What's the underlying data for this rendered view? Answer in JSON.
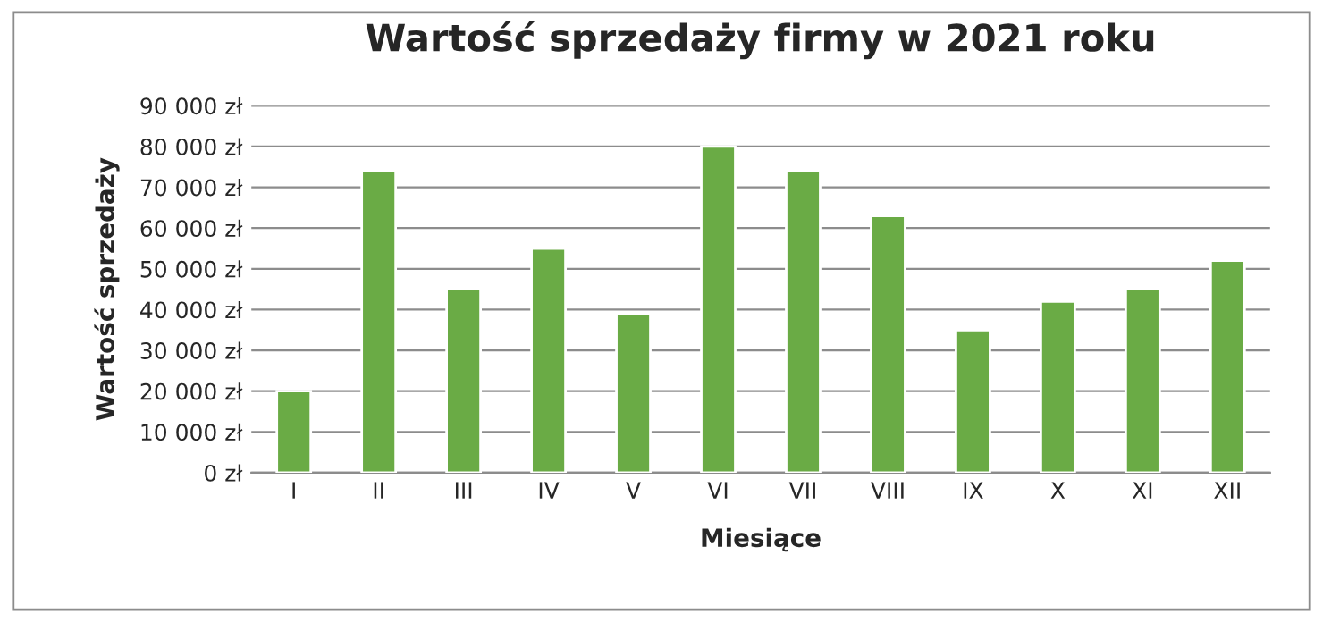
{
  "chart_data": {
    "type": "bar",
    "title": "Wartość sprzedaży firmy w 2021 roku",
    "xlabel": "Miesiące",
    "ylabel": "Wartość sprzedaży",
    "categories": [
      "I",
      "II",
      "III",
      "IV",
      "V",
      "VI",
      "VII",
      "VIII",
      "IX",
      "X",
      "XI",
      "XII"
    ],
    "values": [
      20000,
      74000,
      45000,
      55000,
      39000,
      80000,
      74000,
      63000,
      35000,
      42000,
      45000,
      52000
    ],
    "color": "#6aab45",
    "ylim": [
      0,
      90000
    ],
    "yticks": [
      {
        "value": 0,
        "label": "0 zł"
      },
      {
        "value": 10000,
        "label": "10 000 zł"
      },
      {
        "value": 20000,
        "label": "20 000 zł"
      },
      {
        "value": 30000,
        "label": "30 000 zł"
      },
      {
        "value": 40000,
        "label": "40 000 zł"
      },
      {
        "value": 50000,
        "label": "50 000 zł"
      },
      {
        "value": 60000,
        "label": "60 000 zł"
      },
      {
        "value": 70000,
        "label": "70 000 zł"
      },
      {
        "value": 80000,
        "label": "80 000 zł"
      },
      {
        "value": 90000,
        "label": "90 000 zł"
      }
    ],
    "grid": "y"
  }
}
